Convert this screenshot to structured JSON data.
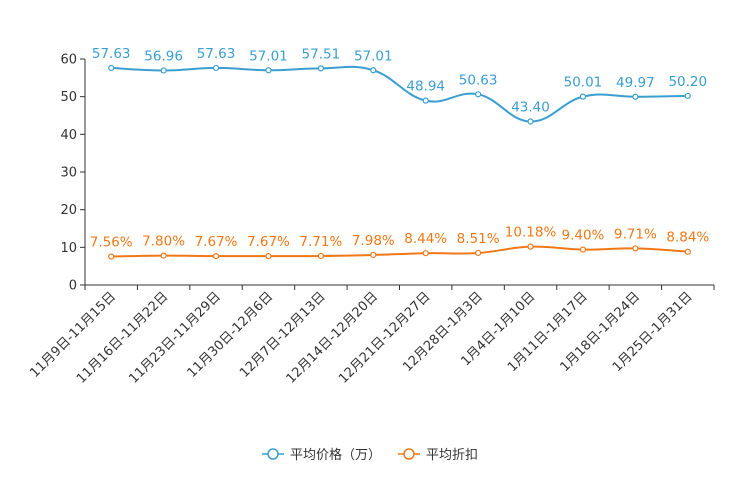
{
  "chart_data": {
    "type": "line",
    "categories": [
      "11月9日-11月15日",
      "11月16日-11月22日",
      "11月23日-11月29日",
      "11月30日-12月6日",
      "12月7日-12月13日",
      "12月14日-12月20日",
      "12月21日-12月27日",
      "12月28日-1月3日",
      "1月4日-1月10日",
      "1月11日-1月17日",
      "1月18日-1月24日",
      "1月25日-1月31日"
    ],
    "series": [
      {
        "name": "平均价格（万）",
        "color": "#3a9fd0",
        "values": [
          57.63,
          56.96,
          57.63,
          57.01,
          57.51,
          57.01,
          48.94,
          50.63,
          43.4,
          50.01,
          49.97,
          50.2
        ],
        "labels": [
          "57.63",
          "56.96",
          "57.63",
          "57.01",
          "57.51",
          "57.01",
          "48.94",
          "50.63",
          "43.40",
          "50.01",
          "49.97",
          "50.20"
        ]
      },
      {
        "name": "平均折扣",
        "color": "#f07818",
        "values": [
          7.56,
          7.8,
          7.67,
          7.67,
          7.71,
          7.98,
          8.44,
          8.51,
          10.18,
          9.4,
          9.71,
          8.84
        ],
        "labels": [
          "7.56%",
          "7.80%",
          "7.67%",
          "7.67%",
          "7.71%",
          "7.98%",
          "8.44%",
          "8.51%",
          "10.18%",
          "9.40%",
          "9.71%",
          "8.84%"
        ]
      }
    ],
    "y_ticks": [
      "0",
      "10",
      "20",
      "30",
      "40",
      "50",
      "60"
    ],
    "ylim": [
      0,
      60
    ],
    "title": "",
    "xlabel": "",
    "ylabel": "",
    "legend_position": "bottom-center",
    "grid": false
  }
}
